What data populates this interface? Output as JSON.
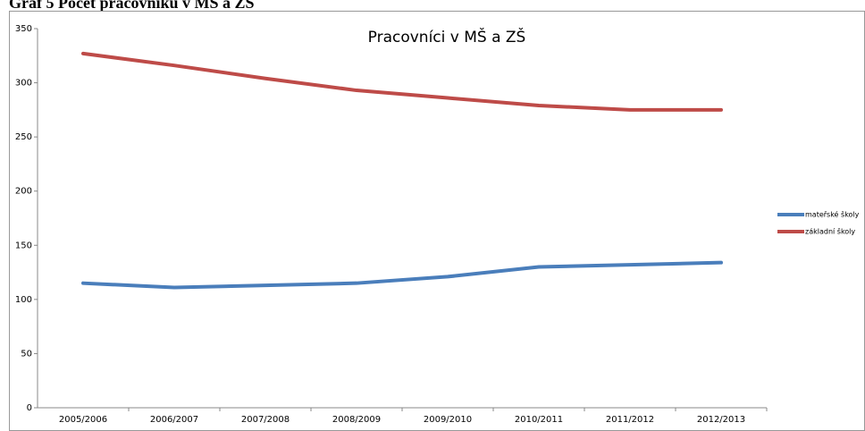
{
  "heading": "Graf 5 Počet pracovníků v MŠ a ZŠ",
  "chart_data": {
    "type": "line",
    "title": "Pracovníci v MŠ a ZŠ",
    "categories": [
      "2005/2006",
      "2006/2007",
      "2007/2008",
      "2008/2009",
      "2009/2010",
      "2010/2011",
      "2011/2012",
      "2012/2013"
    ],
    "series": [
      {
        "name": "mateřské školy",
        "color": "#4a7ebb",
        "values": [
          115,
          111,
          113,
          115,
          121,
          130,
          132,
          134
        ]
      },
      {
        "name": "základní školy",
        "color": "#be4b48",
        "values": [
          327,
          316,
          304,
          293,
          286,
          279,
          275,
          275
        ]
      }
    ],
    "ylim": [
      0,
      350
    ],
    "yticks": [
      0,
      50,
      100,
      150,
      200,
      250,
      300,
      350
    ],
    "grid": false,
    "legend": "right"
  }
}
